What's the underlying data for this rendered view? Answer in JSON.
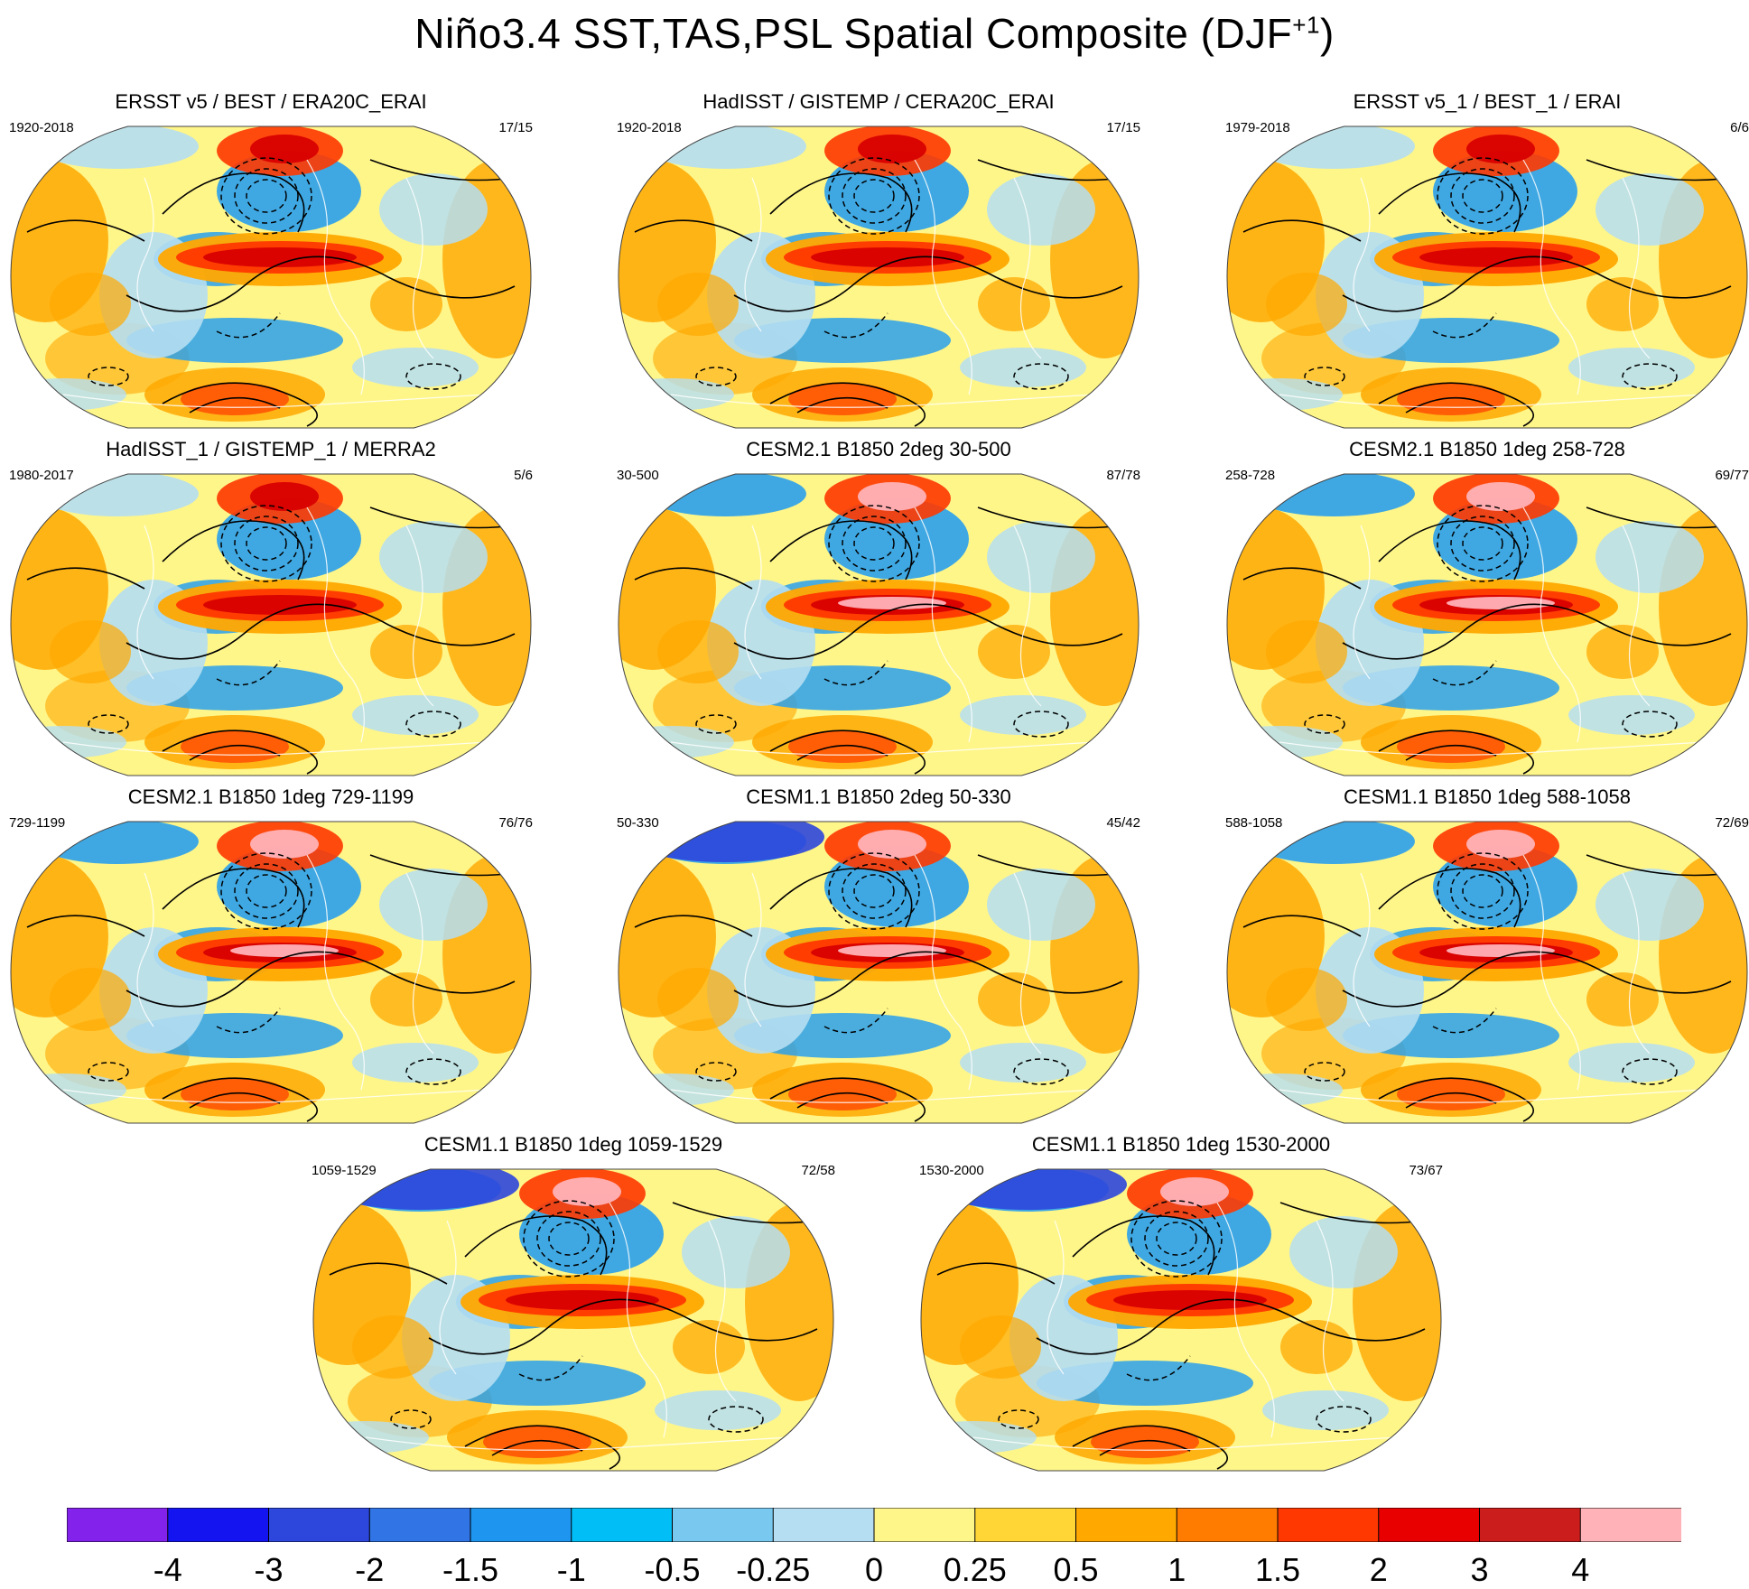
{
  "title": "Niño3.4 SST,TAS,PSL Spatial Composite (DJF",
  "title_sup": "+1",
  "title_close": ")",
  "chart_data": {
    "type": "heatmap",
    "projection": "Robinson",
    "description_fields": "SST/TAS shading, PSL contours",
    "panels": [
      {
        "title": "ERSST v5 / BEST / ERA20C_ERAI",
        "period": "1920-2018",
        "count": "17/15"
      },
      {
        "title": "HadISST / GISTEMP / CERA20C_ERAI",
        "period": "1920-2018",
        "count": "17/15"
      },
      {
        "title": "ERSST v5_1 / BEST_1 / ERAI",
        "period": "1979-2018",
        "count": "6/6"
      },
      {
        "title": "HadISST_1 / GISTEMP_1 / MERRA2",
        "period": "1980-2017",
        "count": "5/6"
      },
      {
        "title": "CESM2.1 B1850 2deg 30-500",
        "period": "30-500",
        "count": "87/78"
      },
      {
        "title": "CESM2.1 B1850 1deg 258-728",
        "period": "258-728",
        "count": "69/77"
      },
      {
        "title": "CESM2.1 B1850 1deg 729-1199",
        "period": "729-1199",
        "count": "76/76"
      },
      {
        "title": "CESM1.1 B1850 2deg 50-330",
        "period": "50-330",
        "count": "45/42"
      },
      {
        "title": "CESM1.1 B1850 1deg 588-1058",
        "period": "588-1058",
        "count": "72/69"
      },
      {
        "title": "CESM1.1 B1850 1deg 1059-1529",
        "period": "1059-1529",
        "count": "72/58"
      },
      {
        "title": "CESM1.1 B1850 1deg 1530-2000",
        "period": "1530-2000",
        "count": "73/67"
      }
    ],
    "colorbar": {
      "levels": [
        "-4",
        "-3",
        "-2",
        "-1.5",
        "-1",
        "-0.5",
        "-0.25",
        "0",
        "0.25",
        "0.5",
        "1",
        "1.5",
        "2",
        "3",
        "4"
      ],
      "colors": [
        "#8222ea",
        "#1414f0",
        "#2d46dc",
        "#3174e6",
        "#1e96f0",
        "#02bef6",
        "#78c8f0",
        "#b5def2",
        "#fff68a",
        "#ffd636",
        "#ffa800",
        "#ff7c00",
        "#ff3700",
        "#e80000",
        "#cc1d1d",
        "#ffb2b8"
      ]
    },
    "styles": {
      "ocean_light": "#b5def2",
      "ocean_blue": "#2aa0ec",
      "warm_yellow": "#fff68a",
      "warm_orange": "#ffa800",
      "warm_red": "#ff3700",
      "deep_red": "#d80000",
      "pink": "#ffb2b8",
      "dark_blue": "#2d46dc"
    }
  }
}
